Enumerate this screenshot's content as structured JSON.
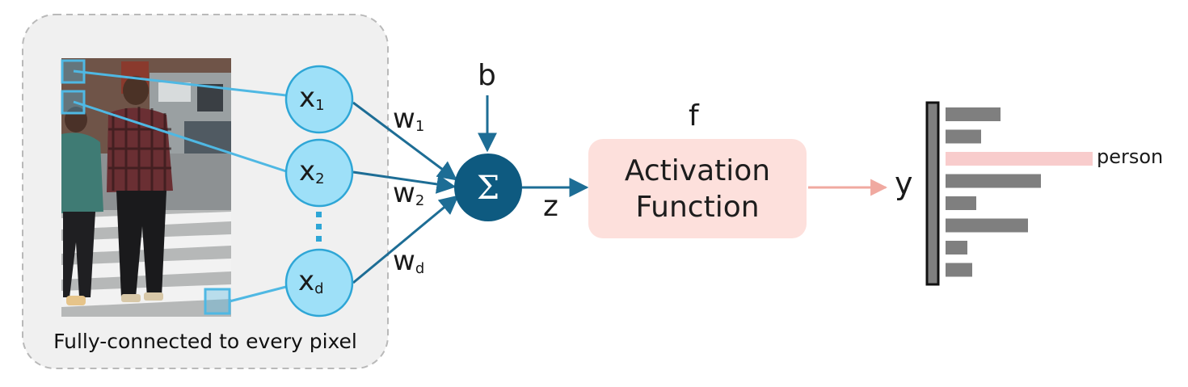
{
  "caption": "Fully-connected to every pixel",
  "inputs": [
    {
      "base": "x",
      "sub": "1"
    },
    {
      "base": "x",
      "sub": "2"
    },
    {
      "base": "x",
      "sub": "d"
    }
  ],
  "weights": [
    {
      "base": "w",
      "sub": "1"
    },
    {
      "base": "w",
      "sub": "2"
    },
    {
      "base": "w",
      "sub": "d"
    }
  ],
  "bias_label": "b",
  "sum_symbol": "Σ",
  "z_label": "z",
  "f_label": "f",
  "activation": {
    "line1": "Activation",
    "line2": "Function"
  },
  "output_label": "y",
  "output_bars": {
    "values": [
      68,
      44,
      182,
      118,
      38,
      102,
      27,
      33
    ],
    "highlight_index": 2,
    "highlight_label": "person"
  },
  "colors": {
    "node_fill": "#9ee0f8",
    "node_stroke": "#2ea6d6",
    "line_light": "#4fb8e3",
    "arrow_dark": "#1d6d95",
    "sum_fill": "#0e5a80",
    "activation_fill": "#fde0dc",
    "output_arrow": "#f0a9a0",
    "bar_gray": "#7f7f7f",
    "bar_highlight": "#f8cccc",
    "panel_fill": "#f0f0f0"
  }
}
